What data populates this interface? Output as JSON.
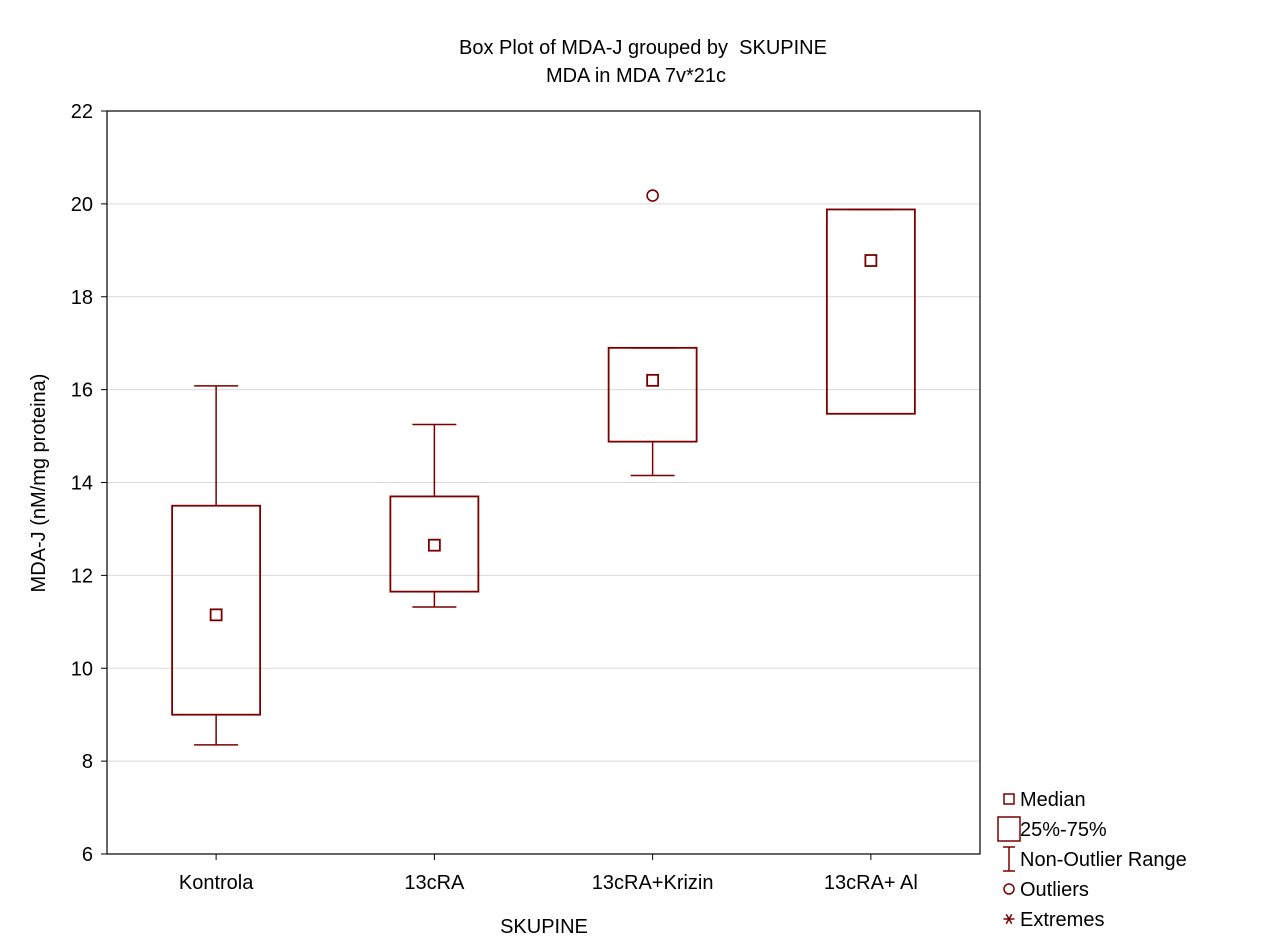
{
  "chart_data": {
    "type": "box",
    "title": "Box Plot of MDA-J grouped by  SKUPINE",
    "subtitle": "MDA in MDA 7v*21c",
    "xlabel": "SKUPINE",
    "ylabel": "MDA-J (nM/mg proteina)",
    "ylim": [
      6,
      22
    ],
    "yticks": [
      6,
      8,
      10,
      12,
      14,
      16,
      18,
      20,
      22
    ],
    "grid": true,
    "legend_position": "bottom-right",
    "color": "#7a0000",
    "categories": [
      "Kontrola",
      "13cRA",
      "13cRA+Krizin",
      "13cRA+ Al"
    ],
    "series": [
      {
        "category": "Kontrola",
        "median": 11.15,
        "q1": 9.0,
        "q3": 13.5,
        "whisker_low": 8.35,
        "whisker_high": 16.08,
        "outliers": []
      },
      {
        "category": "13cRA",
        "median": 12.65,
        "q1": 11.65,
        "q3": 13.7,
        "whisker_low": 11.32,
        "whisker_high": 15.25,
        "outliers": []
      },
      {
        "category": "13cRA+Krizin",
        "median": 16.2,
        "q1": 14.88,
        "q3": 16.9,
        "whisker_low": 14.15,
        "whisker_high": 16.9,
        "outliers": [
          20.18
        ]
      },
      {
        "category": "13cRA+ Al",
        "median": 18.78,
        "q1": 15.48,
        "q3": 19.88,
        "whisker_low": 15.48,
        "whisker_high": 19.88,
        "outliers": []
      }
    ],
    "legend": [
      {
        "key": "median",
        "label": "Median"
      },
      {
        "key": "box",
        "label": "25%-75%"
      },
      {
        "key": "range",
        "label": "Non-Outlier Range"
      },
      {
        "key": "outlier",
        "label": "Outliers"
      },
      {
        "key": "extreme",
        "label": "Extremes"
      }
    ]
  }
}
